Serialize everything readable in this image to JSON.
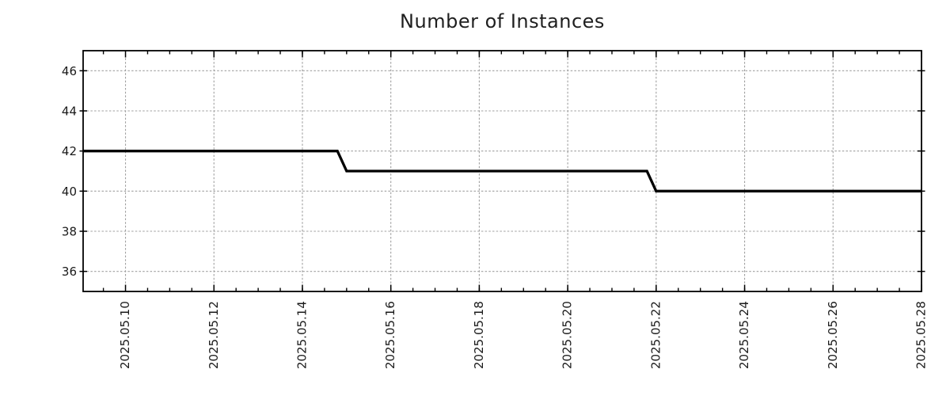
{
  "page": {
    "background": "#ffffff"
  },
  "chart_data": {
    "type": "line",
    "subtype": "step-monitoring-series",
    "title": "Number of Instances",
    "xlabel": "",
    "ylabel": "",
    "legend": "none",
    "grid": true,
    "xlim": [
      "2025-05-09T01:00:00",
      "2025-05-28T00:00:00"
    ],
    "ylim": [
      35,
      47
    ],
    "y_ticks": [
      36,
      38,
      40,
      42,
      44,
      46
    ],
    "x_ticks": [
      "2025.05.10",
      "2025.05.12",
      "2025.05.14",
      "2025.05.16",
      "2025.05.18",
      "2025.05.20",
      "2025.05.22",
      "2025.05.24",
      "2025.05.26",
      "2025.05.28"
    ],
    "x_minor_tick_hours": 12,
    "points": [
      {
        "t": "2025-05-09T01:00:00",
        "v": 42
      },
      {
        "t": "2025-05-14T19:00:00",
        "v": 42
      },
      {
        "t": "2025-05-15T00:00:00",
        "v": 41
      },
      {
        "t": "2025-05-21T19:00:00",
        "v": 41
      },
      {
        "t": "2025-05-22T00:00:00",
        "v": 40
      },
      {
        "t": "2025-05-28T00:00:00",
        "v": 40
      }
    ],
    "colors": {
      "line": "#000000",
      "grid": "#a0a0a0",
      "axis": "#000000",
      "text": "#1a1a1a",
      "background": "#ffffff"
    }
  }
}
